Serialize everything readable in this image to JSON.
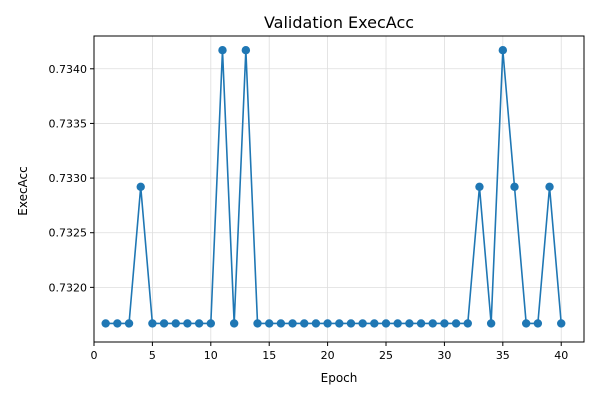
{
  "chart_data": {
    "type": "line",
    "title": "Validation ExecAcc",
    "xlabel": "Epoch",
    "ylabel": "ExecAcc",
    "xlim": [
      0,
      41.95
    ],
    "ylim": [
      0.7315,
      0.7343
    ],
    "x_ticks": [
      0,
      5,
      10,
      15,
      20,
      25,
      30,
      35,
      40
    ],
    "x_tick_labels": [
      "0",
      "5",
      "10",
      "15",
      "20",
      "25",
      "30",
      "35",
      "40"
    ],
    "y_ticks": [
      0.732,
      0.7325,
      0.733,
      0.7335,
      0.734
    ],
    "y_tick_labels": [
      "0.7320",
      "0.7325",
      "0.7330",
      "0.7335",
      "0.7340"
    ],
    "grid": true,
    "legend": "none",
    "series": [
      {
        "color": "#1f77b4",
        "marker": "circle",
        "x": [
          1,
          2,
          3,
          4,
          5,
          6,
          7,
          8,
          9,
          10,
          11,
          12,
          13,
          14,
          15,
          16,
          17,
          18,
          19,
          20,
          21,
          22,
          23,
          24,
          25,
          26,
          27,
          28,
          29,
          30,
          31,
          32,
          33,
          34,
          35,
          36,
          37,
          38,
          39,
          40
        ],
        "y": [
          0.73167,
          0.73167,
          0.73167,
          0.73292,
          0.73167,
          0.73167,
          0.73167,
          0.73167,
          0.73167,
          0.73167,
          0.73417,
          0.73167,
          0.73417,
          0.73167,
          0.73167,
          0.73167,
          0.73167,
          0.73167,
          0.73167,
          0.73167,
          0.73167,
          0.73167,
          0.73167,
          0.73167,
          0.73167,
          0.73167,
          0.73167,
          0.73167,
          0.73167,
          0.73167,
          0.73167,
          0.73167,
          0.73292,
          0.73167,
          0.73417,
          0.73292,
          0.73167,
          0.73167,
          0.73292,
          0.73167
        ]
      }
    ]
  }
}
